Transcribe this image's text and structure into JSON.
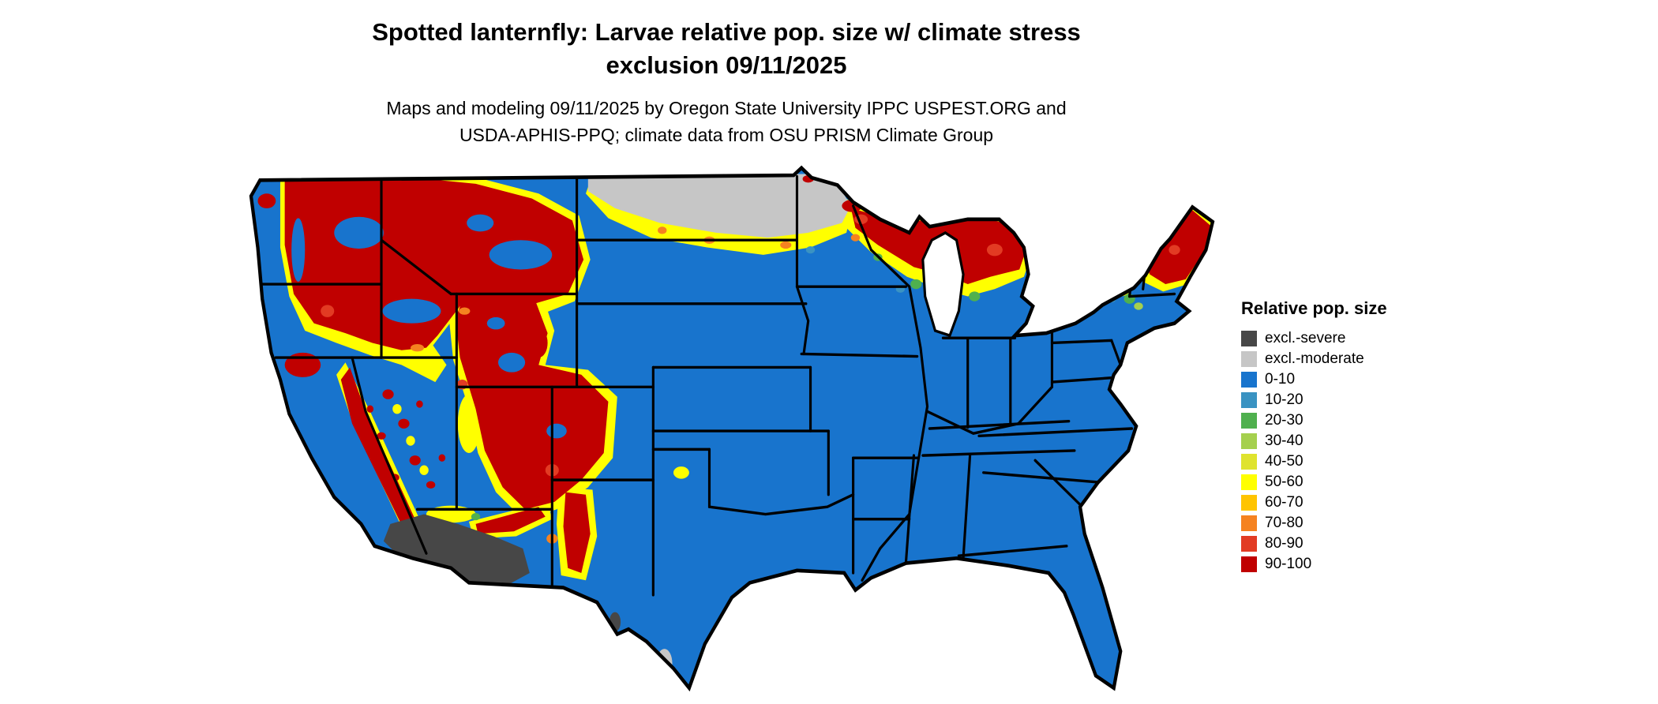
{
  "header": {
    "title_line1": "Spotted lanternfly: Larvae relative pop. size w/ climate stress",
    "title_line2": "exclusion 09/11/2025",
    "subtitle_line1": "Maps and modeling 09/11/2025 by Oregon State University IPPC USPEST.ORG and",
    "subtitle_line2": "USDA-APHIS-PPQ; climate data from OSU PRISM Climate Group"
  },
  "legend": {
    "title": "Relative pop. size",
    "items": [
      {
        "label": "excl.-severe",
        "color": "#474747"
      },
      {
        "label": "excl.-moderate",
        "color": "#c6c6c6"
      },
      {
        "label": "0-10",
        "color": "#1874cd"
      },
      {
        "label": "10-20",
        "color": "#3a93c2"
      },
      {
        "label": "20-30",
        "color": "#4fb04e"
      },
      {
        "label": "30-40",
        "color": "#a5d04e"
      },
      {
        "label": "40-50",
        "color": "#dfe32e"
      },
      {
        "label": "50-60",
        "color": "#ffff00"
      },
      {
        "label": "60-70",
        "color": "#ffc400"
      },
      {
        "label": "70-80",
        "color": "#f58220"
      },
      {
        "label": "80-90",
        "color": "#e23b23"
      },
      {
        "label": "90-100",
        "color": "#c00000"
      }
    ]
  },
  "map_style": {
    "border_color": "#000000",
    "water_color": "#ffffff"
  }
}
